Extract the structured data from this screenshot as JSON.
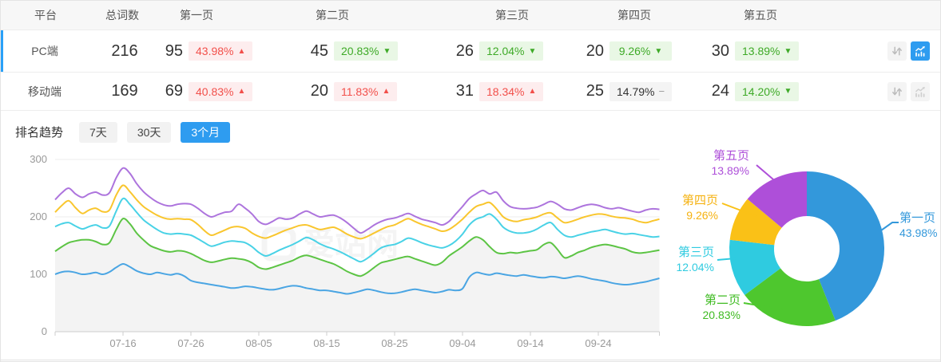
{
  "table": {
    "headers": {
      "platform": "平台",
      "total": "总词数",
      "pages": [
        "第一页",
        "第二页",
        "第三页",
        "第四页",
        "第五页"
      ]
    },
    "rows": [
      {
        "platform": "PC端",
        "total": "216",
        "selected": true,
        "pages": [
          {
            "count": "95",
            "pct": "43.98%",
            "arrow": "▲",
            "tone": "bad"
          },
          {
            "count": "45",
            "pct": "20.83%",
            "arrow": "▼",
            "tone": "good"
          },
          {
            "count": "26",
            "pct": "12.04%",
            "arrow": "▼",
            "tone": "good"
          },
          {
            "count": "20",
            "pct": "9.26%",
            "arrow": "▼",
            "tone": "good"
          },
          {
            "count": "30",
            "pct": "13.89%",
            "arrow": "▼",
            "tone": "good"
          }
        ],
        "trend_active": true
      },
      {
        "platform": "移动端",
        "total": "169",
        "selected": false,
        "pages": [
          {
            "count": "69",
            "pct": "40.83%",
            "arrow": "▲",
            "tone": "bad"
          },
          {
            "count": "20",
            "pct": "11.83%",
            "arrow": "▲",
            "tone": "bad"
          },
          {
            "count": "31",
            "pct": "18.34%",
            "arrow": "▲",
            "tone": "bad"
          },
          {
            "count": "25",
            "pct": "14.79%",
            "arrow": "−",
            "tone": "neutral"
          },
          {
            "count": "24",
            "pct": "14.20%",
            "arrow": "▼",
            "tone": "good"
          }
        ],
        "trend_active": false
      }
    ]
  },
  "trend": {
    "title": "排名趋势",
    "tabs": [
      {
        "label": "7天",
        "active": false
      },
      {
        "label": "30天",
        "active": false
      },
      {
        "label": "3个月",
        "active": true
      }
    ]
  },
  "watermark": "爱站网",
  "colors": {
    "accent_blue": "#2e9cf0",
    "selected_row_bar": "#29a0f8",
    "badge_red_text": "#f2504b",
    "badge_red_bg": "#fdedee",
    "badge_green_text": "#3eaa27",
    "badge_green_bg": "#e9f7e5",
    "badge_gray_bg": "#f4f4f4"
  },
  "chart_data": [
    {
      "type": "line",
      "title": "排名趋势 3个月",
      "x_ticks": [
        "07-16",
        "07-26",
        "08-05",
        "08-15",
        "08-25",
        "09-04",
        "09-14",
        "09-24"
      ],
      "y_ticks": [
        0,
        100,
        200,
        300
      ],
      "ylim": [
        0,
        300
      ],
      "grid": true,
      "legend_position": "none",
      "series": [
        {
          "name": "第一页",
          "color": "#4aa5e3",
          "values": [
            100,
            104,
            105,
            103,
            100,
            101,
            103,
            100,
            104,
            112,
            118,
            113,
            106,
            102,
            100,
            103,
            101,
            99,
            101,
            97,
            89,
            86,
            84,
            82,
            80,
            78,
            76,
            77,
            79,
            78,
            76,
            74,
            73,
            75,
            78,
            80,
            79,
            76,
            74,
            72,
            72,
            70,
            68,
            66,
            68,
            71,
            74,
            72,
            69,
            67,
            67,
            69,
            72,
            74,
            72,
            70,
            68,
            70,
            73,
            72,
            75,
            95,
            103,
            101,
            99,
            102,
            100,
            98,
            97,
            99,
            97,
            95,
            94,
            96,
            95,
            93,
            95,
            97,
            95,
            92,
            90,
            88,
            85,
            83,
            82,
            83,
            85,
            87,
            90,
            93
          ]
        },
        {
          "name": "第二页",
          "color": "#5cc444",
          "area_fill": "#f3f3f3",
          "values": [
            140,
            148,
            155,
            158,
            160,
            160,
            157,
            152,
            155,
            178,
            197,
            188,
            172,
            160,
            150,
            145,
            141,
            139,
            141,
            140,
            136,
            130,
            124,
            121,
            123,
            126,
            128,
            127,
            125,
            120,
            112,
            109,
            112,
            116,
            120,
            124,
            130,
            133,
            130,
            126,
            122,
            118,
            112,
            105,
            100,
            97,
            103,
            112,
            120,
            123,
            126,
            129,
            131,
            127,
            123,
            119,
            116,
            121,
            132,
            140,
            148,
            158,
            165,
            160,
            148,
            138,
            136,
            138,
            137,
            139,
            141,
            143,
            152,
            155,
            143,
            129,
            132,
            138,
            142,
            147,
            150,
            152,
            150,
            147,
            144,
            139,
            137,
            138,
            140,
            142
          ]
        },
        {
          "name": "第三页",
          "color": "#49d2e6",
          "values": [
            183,
            188,
            190,
            184,
            179,
            183,
            186,
            181,
            184,
            210,
            232,
            222,
            208,
            195,
            186,
            178,
            172,
            170,
            171,
            170,
            168,
            162,
            155,
            149,
            152,
            156,
            158,
            157,
            155,
            148,
            138,
            132,
            136,
            142,
            147,
            152,
            158,
            164,
            160,
            153,
            148,
            144,
            139,
            133,
            127,
            122,
            128,
            137,
            146,
            150,
            152,
            157,
            163,
            160,
            155,
            151,
            148,
            146,
            150,
            158,
            170,
            186,
            196,
            200,
            205,
            196,
            182,
            175,
            172,
            172,
            174,
            179,
            186,
            190,
            178,
            168,
            165,
            168,
            171,
            174,
            176,
            178,
            175,
            172,
            170,
            171,
            169,
            167,
            165,
            166
          ]
        },
        {
          "name": "第四页",
          "color": "#f9c62e",
          "values": [
            208,
            220,
            228,
            216,
            206,
            212,
            215,
            209,
            212,
            238,
            255,
            244,
            230,
            218,
            210,
            203,
            198,
            196,
            197,
            196,
            195,
            187,
            176,
            168,
            172,
            177,
            182,
            183,
            180,
            172,
            166,
            163,
            167,
            172,
            177,
            181,
            185,
            186,
            182,
            178,
            180,
            182,
            177,
            170,
            165,
            162,
            166,
            172,
            178,
            183,
            186,
            192,
            197,
            192,
            187,
            183,
            179,
            175,
            178,
            186,
            196,
            208,
            218,
            222,
            225,
            214,
            200,
            194,
            192,
            195,
            197,
            200,
            205,
            207,
            198,
            190,
            192,
            196,
            200,
            203,
            205,
            204,
            201,
            199,
            198,
            196,
            192,
            190,
            193,
            196
          ]
        },
        {
          "name": "第五页",
          "color": "#ad74dd",
          "values": [
            230,
            242,
            250,
            240,
            234,
            240,
            243,
            238,
            242,
            268,
            285,
            276,
            258,
            244,
            234,
            226,
            221,
            219,
            222,
            223,
            222,
            215,
            206,
            200,
            204,
            208,
            210,
            222,
            215,
            205,
            192,
            187,
            192,
            198,
            196,
            198,
            205,
            210,
            205,
            200,
            202,
            203,
            198,
            190,
            180,
            172,
            178,
            186,
            192,
            196,
            198,
            202,
            206,
            201,
            196,
            193,
            190,
            186,
            192,
            205,
            218,
            232,
            240,
            246,
            240,
            243,
            228,
            218,
            215,
            214,
            215,
            217,
            222,
            227,
            222,
            214,
            212,
            216,
            220,
            222,
            220,
            216,
            214,
            216,
            213,
            210,
            208,
            212,
            214,
            213
          ]
        }
      ]
    },
    {
      "type": "pie",
      "donut": true,
      "slices": [
        {
          "label": "第一页",
          "value": 43.98,
          "pct_text": "43.98%",
          "color": "#3398db"
        },
        {
          "label": "第二页",
          "value": 20.83,
          "pct_text": "20.83%",
          "color": "#4ec72e"
        },
        {
          "label": "第三页",
          "value": 12.04,
          "pct_text": "12.04%",
          "color": "#2fcbe0"
        },
        {
          "label": "第四页",
          "value": 9.26,
          "pct_text": "9.26%",
          "color": "#fac117"
        },
        {
          "label": "第五页",
          "value": 13.89,
          "pct_text": "13.89%",
          "color": "#ae4fd9"
        }
      ]
    }
  ]
}
